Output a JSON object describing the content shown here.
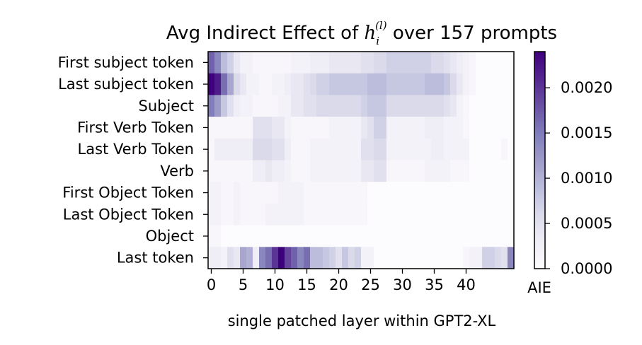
{
  "chart_data": {
    "type": "heatmap",
    "title_prefix": "Avg Indirect Effect of ",
    "title_math_base": "h",
    "title_math_sub": "i",
    "title_math_sup": "(l)",
    "title_suffix": " over 157 prompts",
    "xlabel": "single patched layer within GPT2-XL",
    "colorbar_label": "AIE",
    "colormap": "Purples",
    "row_labels": [
      "First subject token",
      "Last subject token",
      "Subject",
      "First Verb Token",
      "Last Verb Token",
      "Verb",
      "First Object Token",
      "Last Object Token",
      "Object",
      "Last token"
    ],
    "x_ticks": [
      0,
      5,
      10,
      15,
      20,
      25,
      30,
      35,
      40
    ],
    "x_tick_labels": [
      "0",
      "5",
      "10",
      "15",
      "20",
      "25",
      "30",
      "35",
      "40"
    ],
    "colorbar_ticks": [
      0.0,
      0.0005,
      0.001,
      0.0015,
      0.002
    ],
    "colorbar_tick_labels": [
      "0.0000",
      "0.0005",
      "0.0010",
      "0.0015",
      "0.0020"
    ],
    "vmin": 0.0,
    "vmax": 0.0024,
    "n_layers": 48,
    "values": [
      [
        0.0017,
        0.0014,
        0.0009,
        0.0007,
        0.0004,
        0.0002,
        0.0002,
        0.0001,
        0.0001,
        0.0001,
        0.0001,
        0.0001,
        0.0001,
        0.0002,
        0.0002,
        0.0002,
        0.0003,
        0.0003,
        0.0003,
        0.0004,
        0.0004,
        0.0004,
        0.0004,
        0.0004,
        0.0005,
        0.0005,
        0.0006,
        0.0006,
        0.0007,
        0.0007,
        0.0007,
        0.0007,
        0.0007,
        0.0007,
        0.0007,
        0.0006,
        0.0006,
        0.0005,
        0.0004,
        0.0003,
        0.0002,
        0.0001,
        0,
        0,
        0,
        0,
        0,
        0
      ],
      [
        0.0024,
        0.0022,
        0.0016,
        0.0011,
        0.0006,
        0.0004,
        0.0002,
        0.0002,
        0.0001,
        0.0001,
        0.0002,
        0.0002,
        0.0003,
        0.0004,
        0.0004,
        0.0005,
        0.0006,
        0.0007,
        0.0007,
        0.0008,
        0.0008,
        0.0008,
        0.0008,
        0.0008,
        0.0008,
        0.0009,
        0.0009,
        0.0009,
        0.0008,
        0.0008,
        0.0008,
        0.0008,
        0.0008,
        0.0008,
        0.0009,
        0.0009,
        0.0009,
        0.0008,
        0.0006,
        0.0004,
        0.0002,
        0.0001,
        0,
        0,
        0,
        0,
        0,
        0
      ],
      [
        0.0015,
        0.0012,
        0.0008,
        0.0005,
        0.0003,
        0.0002,
        0.0002,
        0.0001,
        0.0001,
        0.0001,
        0.0001,
        0.0002,
        0.0002,
        0.0004,
        0.0004,
        0.0005,
        0.0005,
        0.0006,
        0.0006,
        0.0006,
        0.0006,
        0.0006,
        0.0006,
        0.0006,
        0.0007,
        0.0008,
        0.0008,
        0.0008,
        0.0006,
        0.0006,
        0.0006,
        0.0006,
        0.0006,
        0.0006,
        0.0006,
        0.0006,
        0.0006,
        0.0005,
        0.0004,
        0.0002,
        0.0001,
        0,
        0,
        0,
        0,
        0,
        0,
        0
      ],
      [
        0.0001,
        0.0001,
        0.0001,
        0.0001,
        0.0001,
        0.0001,
        0.0001,
        0.0005,
        0.0005,
        0.0005,
        0.0004,
        0.0004,
        0.0002,
        0.0001,
        0.0001,
        0.0001,
        0.0001,
        0.0001,
        0.0001,
        0.0002,
        0.0002,
        0.0002,
        0.0002,
        0.0002,
        0.0004,
        0.0005,
        0.0007,
        0.0007,
        0.0002,
        0.0002,
        0.0002,
        0.0002,
        0.0002,
        0.0002,
        0.0003,
        0.0003,
        0.0003,
        0.0002,
        0.0002,
        0.0002,
        0.0001,
        0,
        0,
        0,
        0,
        0,
        0,
        0
      ],
      [
        0.0001,
        0.0003,
        0.0003,
        0.0003,
        0.0003,
        0.0003,
        0.0003,
        0.0006,
        0.0006,
        0.0006,
        0.0005,
        0.0005,
        0.0003,
        0.0001,
        0.0001,
        0.0001,
        0.0002,
        0.0002,
        0.0002,
        0.0002,
        0.0002,
        0.0002,
        0.0002,
        0.0002,
        0.0005,
        0.0005,
        0.0006,
        0.0006,
        0.0002,
        0.0002,
        0.0002,
        0.0002,
        0.0002,
        0.0002,
        0.0002,
        0.0003,
        0.0003,
        0.0002,
        0.0002,
        0.0002,
        0.0002,
        0,
        0,
        0,
        0,
        0,
        0.0001,
        0
      ],
      [
        0.0001,
        0.0001,
        0.0001,
        0.0001,
        0.0001,
        0.0001,
        0.0001,
        0.0003,
        0.0003,
        0.0004,
        0.0003,
        0.0003,
        0.0002,
        0.0001,
        0.0001,
        0.0001,
        0.0002,
        0.0002,
        0.0002,
        0.0002,
        0.0002,
        0.0002,
        0.0002,
        0.0002,
        0.0004,
        0.0004,
        0.0005,
        0.0005,
        0.0001,
        0.0001,
        0.0001,
        0.0001,
        0.0001,
        0.0001,
        0.0002,
        0.0002,
        0.0002,
        0.0002,
        0.0001,
        0.0001,
        0.0001,
        0,
        0,
        0,
        0,
        0,
        0,
        0
      ],
      [
        0.0002,
        0.0002,
        0.0001,
        0.0001,
        0.0002,
        0.0001,
        0.0001,
        0.0001,
        0.0001,
        0.0001,
        0.0001,
        0.0002,
        0.0002,
        0.0002,
        0.0002,
        0.0001,
        0.0001,
        0.0001,
        0.0001,
        0.0001,
        0.0001,
        0.0001,
        0.0001,
        0.0001,
        0.0001,
        0,
        0,
        0,
        0,
        0,
        0,
        0,
        0,
        0,
        0,
        0,
        0,
        0,
        0,
        0,
        0,
        0,
        0,
        0,
        0,
        0,
        0,
        0
      ],
      [
        0.0002,
        0.0002,
        0.0001,
        0.0001,
        0.0002,
        0.0001,
        0.0001,
        0.0001,
        0.0001,
        0.0002,
        0.0002,
        0.0002,
        0.0002,
        0.0002,
        0.0002,
        0.0001,
        0.0001,
        0.0001,
        0.0001,
        0.0001,
        0.0001,
        0.0001,
        0.0001,
        0.0001,
        0.0001,
        0,
        0,
        0,
        0,
        0,
        0,
        0,
        0,
        0,
        0,
        0,
        0,
        0,
        0,
        0,
        0,
        0,
        0,
        0,
        0,
        0,
        0,
        0
      ],
      [
        0.0001,
        0.0001,
        0,
        0,
        0,
        0,
        0,
        0,
        0,
        0,
        0,
        0,
        0,
        0,
        0,
        0,
        0,
        0,
        0,
        0,
        0,
        0,
        0,
        0,
        0,
        0,
        0,
        0,
        0,
        0,
        0,
        0,
        0,
        0,
        0,
        0,
        0,
        0,
        0,
        0,
        0,
        0,
        0,
        0,
        0,
        0,
        0,
        0
      ],
      [
        0.0003,
        0.0003,
        0.0002,
        0.0005,
        0.0004,
        0.0011,
        0.001,
        0.0003,
        0.0014,
        0.0016,
        0.002,
        0.0024,
        0.0019,
        0.0017,
        0.0014,
        0.0016,
        0.0009,
        0.0009,
        0.0008,
        0.0007,
        0.0005,
        0.0008,
        0.0006,
        0.0007,
        0.0002,
        0.0002,
        0,
        0,
        0,
        0,
        0,
        0,
        0,
        0,
        0,
        0,
        0,
        0,
        0,
        0,
        0.0001,
        0.0002,
        0.0002,
        0.0007,
        0.0007,
        0.0006,
        0.0005,
        0.0014
      ]
    ]
  }
}
